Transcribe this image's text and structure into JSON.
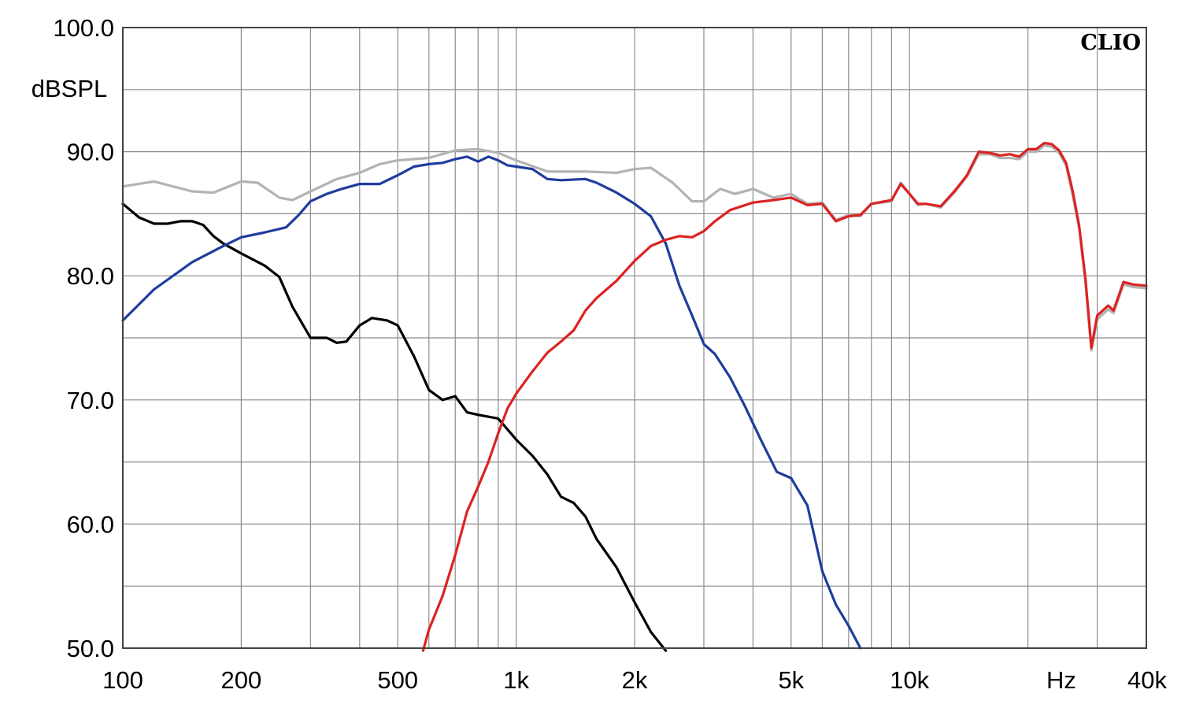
{
  "chart_data": {
    "type": "line",
    "xscale": "log",
    "xlim": [
      100,
      40000
    ],
    "ylim": [
      50,
      100
    ],
    "grid": true,
    "ylabel": "dBSPL",
    "xlabel": "Hz",
    "brand": "CLIO",
    "yticks": [
      {
        "value": 100,
        "label": "100.0"
      },
      {
        "value": 90,
        "label": "90.0"
      },
      {
        "value": 80,
        "label": "80.0"
      },
      {
        "value": 70,
        "label": "70.0"
      },
      {
        "value": 60,
        "label": "60.0"
      },
      {
        "value": 50,
        "label": "50.0"
      }
    ],
    "xticks": [
      {
        "value": 100,
        "label": "100"
      },
      {
        "value": 200,
        "label": "200"
      },
      {
        "value": 500,
        "label": "500"
      },
      {
        "value": 1000,
        "label": "1k"
      },
      {
        "value": 2000,
        "label": "2k"
      },
      {
        "value": 5000,
        "label": "5k"
      },
      {
        "value": 10000,
        "label": "10k"
      },
      {
        "value": 40000,
        "label": "40k"
      }
    ],
    "series": [
      {
        "color": "#b3b3b3",
        "points": [
          [
            100,
            87.2
          ],
          [
            120,
            87.6
          ],
          [
            150,
            86.8
          ],
          [
            170,
            86.7
          ],
          [
            200,
            87.6
          ],
          [
            220,
            87.5
          ],
          [
            250,
            86.3
          ],
          [
            270,
            86.1
          ],
          [
            300,
            86.8
          ],
          [
            350,
            87.8
          ],
          [
            400,
            88.3
          ],
          [
            450,
            89.0
          ],
          [
            500,
            89.3
          ],
          [
            600,
            89.5
          ],
          [
            700,
            90.1
          ],
          [
            800,
            90.2
          ],
          [
            900,
            89.9
          ],
          [
            1000,
            89.3
          ],
          [
            1200,
            88.4
          ],
          [
            1500,
            88.4
          ],
          [
            1800,
            88.3
          ],
          [
            2000,
            88.6
          ],
          [
            2200,
            88.7
          ],
          [
            2500,
            87.5
          ],
          [
            2800,
            86.0
          ],
          [
            3000,
            86.0
          ],
          [
            3300,
            87.0
          ],
          [
            3600,
            86.6
          ],
          [
            4000,
            87.0
          ],
          [
            4500,
            86.3
          ],
          [
            5000,
            86.6
          ],
          [
            5500,
            85.8
          ],
          [
            6000,
            85.9
          ],
          [
            6500,
            84.5
          ],
          [
            7000,
            84.9
          ],
          [
            7500,
            84.8
          ],
          [
            8000,
            85.8
          ],
          [
            9000,
            86.0
          ],
          [
            9500,
            87.5
          ],
          [
            10000,
            86.6
          ],
          [
            10500,
            85.7
          ],
          [
            11000,
            85.8
          ],
          [
            12000,
            85.5
          ],
          [
            13000,
            86.7
          ],
          [
            14000,
            88.0
          ],
          [
            15000,
            89.8
          ],
          [
            16000,
            89.8
          ],
          [
            17000,
            89.5
          ],
          [
            18000,
            89.5
          ],
          [
            19000,
            89.4
          ],
          [
            20000,
            90.0
          ],
          [
            21000,
            90.0
          ],
          [
            22000,
            90.5
          ],
          [
            23000,
            90.4
          ],
          [
            24000,
            89.9
          ],
          [
            25000,
            88.9
          ],
          [
            26000,
            86.5
          ],
          [
            27000,
            83.8
          ],
          [
            28000,
            79.5
          ],
          [
            29000,
            74.0
          ],
          [
            30000,
            76.5
          ],
          [
            32000,
            77.3
          ],
          [
            33000,
            77.0
          ],
          [
            35000,
            79.3
          ],
          [
            37000,
            79.1
          ],
          [
            40000,
            79.0
          ]
        ]
      },
      {
        "color": "#000000",
        "points": [
          [
            100,
            85.8
          ],
          [
            110,
            84.7
          ],
          [
            120,
            84.2
          ],
          [
            130,
            84.2
          ],
          [
            140,
            84.4
          ],
          [
            150,
            84.4
          ],
          [
            160,
            84.1
          ],
          [
            170,
            83.2
          ],
          [
            180,
            82.6
          ],
          [
            200,
            81.8
          ],
          [
            230,
            80.8
          ],
          [
            250,
            79.9
          ],
          [
            270,
            77.5
          ],
          [
            300,
            75.0
          ],
          [
            330,
            75.0
          ],
          [
            350,
            74.6
          ],
          [
            370,
            74.7
          ],
          [
            400,
            76.0
          ],
          [
            430,
            76.6
          ],
          [
            470,
            76.4
          ],
          [
            500,
            76.0
          ],
          [
            550,
            73.5
          ],
          [
            600,
            70.8
          ],
          [
            650,
            70.0
          ],
          [
            700,
            70.3
          ],
          [
            750,
            69.0
          ],
          [
            800,
            68.8
          ],
          [
            900,
            68.5
          ],
          [
            1000,
            66.8
          ],
          [
            1100,
            65.5
          ],
          [
            1200,
            64.0
          ],
          [
            1300,
            62.2
          ],
          [
            1400,
            61.7
          ],
          [
            1500,
            60.6
          ],
          [
            1600,
            58.8
          ],
          [
            1800,
            56.5
          ],
          [
            2000,
            53.7
          ],
          [
            2200,
            51.3
          ],
          [
            2400,
            49.8
          ]
        ]
      },
      {
        "color": "#1f3d9e",
        "points": [
          [
            100,
            76.4
          ],
          [
            120,
            78.9
          ],
          [
            150,
            81.1
          ],
          [
            180,
            82.4
          ],
          [
            200,
            83.1
          ],
          [
            230,
            83.5
          ],
          [
            260,
            83.9
          ],
          [
            280,
            84.9
          ],
          [
            300,
            86.0
          ],
          [
            330,
            86.6
          ],
          [
            360,
            87.0
          ],
          [
            400,
            87.4
          ],
          [
            450,
            87.4
          ],
          [
            500,
            88.1
          ],
          [
            550,
            88.8
          ],
          [
            600,
            89.0
          ],
          [
            650,
            89.1
          ],
          [
            700,
            89.4
          ],
          [
            750,
            89.6
          ],
          [
            800,
            89.2
          ],
          [
            850,
            89.6
          ],
          [
            900,
            89.3
          ],
          [
            950,
            88.9
          ],
          [
            1000,
            88.8
          ],
          [
            1100,
            88.6
          ],
          [
            1200,
            87.8
          ],
          [
            1300,
            87.7
          ],
          [
            1500,
            87.8
          ],
          [
            1600,
            87.5
          ],
          [
            1800,
            86.7
          ],
          [
            2000,
            85.8
          ],
          [
            2200,
            84.8
          ],
          [
            2400,
            82.6
          ],
          [
            2600,
            79.2
          ],
          [
            2800,
            76.8
          ],
          [
            3000,
            74.5
          ],
          [
            3200,
            73.7
          ],
          [
            3500,
            71.8
          ],
          [
            3800,
            69.6
          ],
          [
            4200,
            66.7
          ],
          [
            4600,
            64.2
          ],
          [
            5000,
            63.7
          ],
          [
            5500,
            61.5
          ],
          [
            6000,
            56.2
          ],
          [
            6500,
            53.5
          ],
          [
            7000,
            51.8
          ],
          [
            7500,
            50.0
          ]
        ]
      },
      {
        "color": "#dd2222",
        "points": [
          [
            580,
            49.8
          ],
          [
            600,
            51.5
          ],
          [
            650,
            54.2
          ],
          [
            700,
            57.5
          ],
          [
            750,
            61.0
          ],
          [
            800,
            63.0
          ],
          [
            850,
            65.0
          ],
          [
            900,
            67.3
          ],
          [
            950,
            69.3
          ],
          [
            1000,
            70.5
          ],
          [
            1100,
            72.3
          ],
          [
            1200,
            73.8
          ],
          [
            1300,
            74.7
          ],
          [
            1400,
            75.6
          ],
          [
            1500,
            77.2
          ],
          [
            1600,
            78.2
          ],
          [
            1800,
            79.6
          ],
          [
            2000,
            81.2
          ],
          [
            2200,
            82.4
          ],
          [
            2400,
            82.9
          ],
          [
            2600,
            83.2
          ],
          [
            2800,
            83.1
          ],
          [
            3000,
            83.6
          ],
          [
            3200,
            84.4
          ],
          [
            3500,
            85.3
          ],
          [
            4000,
            85.9
          ],
          [
            4500,
            86.1
          ],
          [
            5000,
            86.3
          ],
          [
            5500,
            85.7
          ],
          [
            6000,
            85.8
          ],
          [
            6500,
            84.4
          ],
          [
            7000,
            84.8
          ],
          [
            7500,
            84.9
          ],
          [
            8000,
            85.8
          ],
          [
            9000,
            86.1
          ],
          [
            9500,
            87.4
          ],
          [
            10000,
            86.6
          ],
          [
            10500,
            85.8
          ],
          [
            11000,
            85.8
          ],
          [
            12000,
            85.6
          ],
          [
            13000,
            86.8
          ],
          [
            14000,
            88.1
          ],
          [
            15000,
            90.0
          ],
          [
            16000,
            89.9
          ],
          [
            17000,
            89.7
          ],
          [
            18000,
            89.8
          ],
          [
            19000,
            89.6
          ],
          [
            20000,
            90.2
          ],
          [
            21000,
            90.2
          ],
          [
            22000,
            90.7
          ],
          [
            23000,
            90.6
          ],
          [
            24000,
            90.1
          ],
          [
            25000,
            89.1
          ],
          [
            26000,
            86.8
          ],
          [
            27000,
            84.0
          ],
          [
            28000,
            79.8
          ],
          [
            29000,
            74.2
          ],
          [
            30000,
            76.8
          ],
          [
            32000,
            77.6
          ],
          [
            33000,
            77.2
          ],
          [
            35000,
            79.5
          ],
          [
            37000,
            79.3
          ],
          [
            40000,
            79.2
          ]
        ]
      }
    ]
  }
}
